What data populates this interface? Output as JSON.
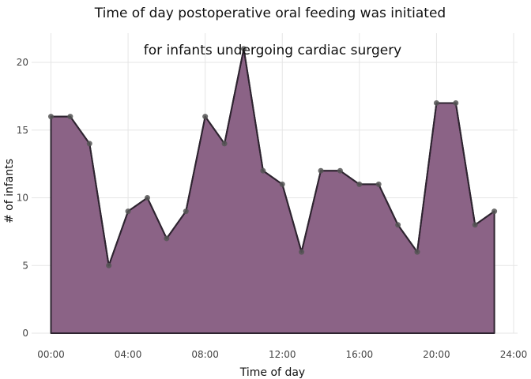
{
  "chart_data": {
    "type": "area",
    "title_line1": "Time of day postoperative oral feeding was initiated",
    "title_line2": "for infants undergoing cardiac surgery",
    "xlabel": "Time of day",
    "ylabel": "# of infants",
    "x": [
      "00:00",
      "01:00",
      "02:00",
      "03:00",
      "04:00",
      "05:00",
      "06:00",
      "07:00",
      "08:00",
      "09:00",
      "10:00",
      "11:00",
      "12:00",
      "13:00",
      "14:00",
      "15:00",
      "16:00",
      "17:00",
      "18:00",
      "19:00",
      "20:00",
      "21:00",
      "22:00",
      "23:00"
    ],
    "values": [
      16,
      16,
      14,
      5,
      9,
      10,
      7,
      9,
      16,
      14,
      21,
      12,
      11,
      6,
      12,
      12,
      11,
      11,
      8,
      6,
      17,
      17,
      8,
      9
    ],
    "xticks": [
      "00:00",
      "04:00",
      "08:00",
      "12:00",
      "16:00",
      "20:00",
      "24:00"
    ],
    "yticks": [
      "0",
      "5",
      "10",
      "15",
      "20"
    ],
    "xlim": [
      "00:00",
      "24:00"
    ],
    "ylim": [
      0,
      22
    ],
    "grid": true,
    "colors": {
      "fill": "#8b6386",
      "line": "#2e2430",
      "marker": "#555555",
      "grid": "#e5e5e5"
    }
  }
}
